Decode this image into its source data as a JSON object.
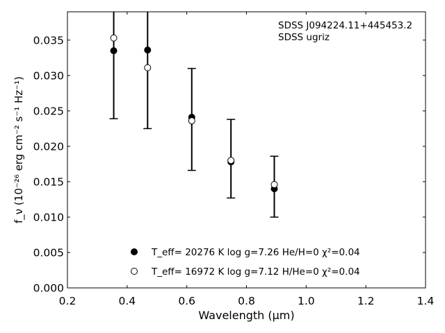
{
  "chart_data": {
    "type": "scatter",
    "xlabel": "Wavelength (μm)",
    "ylabel": "f_ν (10⁻²⁶ erg cm⁻² s⁻¹ Hz⁻¹)",
    "xlim": [
      0.2,
      1.4
    ],
    "ylim": [
      0.0,
      0.039
    ],
    "x_ticks": [
      0.2,
      0.4,
      0.6,
      0.8,
      1.0,
      1.2,
      1.4
    ],
    "x_tick_labels": [
      "0.2",
      "0.4",
      "0.6",
      "0.8",
      "1.0",
      "1.2",
      "1.4"
    ],
    "y_ticks": [
      0.0,
      0.005,
      0.01,
      0.015,
      0.02,
      0.025,
      0.03,
      0.035
    ],
    "y_tick_labels": [
      "0.000",
      "0.005",
      "0.010",
      "0.015",
      "0.020",
      "0.025",
      "0.030",
      "0.035"
    ],
    "grid": false,
    "legend_position": "lower-center",
    "annotations": [
      "SDSS J094224.11+445453.2",
      "SDSS ugriz"
    ],
    "series": [
      {
        "name": "T_eff= 20276 K  log g=7.26  He/H=0  χ²=0.04",
        "marker": "filled-circle",
        "color": "#000000",
        "x": [
          0.3551,
          0.4686,
          0.6166,
          0.748,
          0.8932
        ],
        "y": [
          0.0335,
          0.0336,
          0.0241,
          0.0178,
          0.014
        ]
      },
      {
        "name": "T_eff= 16972 K  log g=7.12  H/He=0  χ²=0.04",
        "marker": "open-circle",
        "color": "#000000",
        "x": [
          0.3551,
          0.4686,
          0.6166,
          0.748,
          0.8932
        ],
        "y": [
          0.0353,
          0.0311,
          0.0236,
          0.018,
          0.0146
        ]
      }
    ],
    "observed": {
      "x": [
        0.3551,
        0.4686,
        0.6166,
        0.748,
        0.8932
      ],
      "y_low": [
        0.0239,
        0.0225,
        0.0166,
        0.0127,
        0.01
      ],
      "y_high": [
        0.039,
        0.039,
        0.031,
        0.0238,
        0.0186
      ]
    }
  }
}
